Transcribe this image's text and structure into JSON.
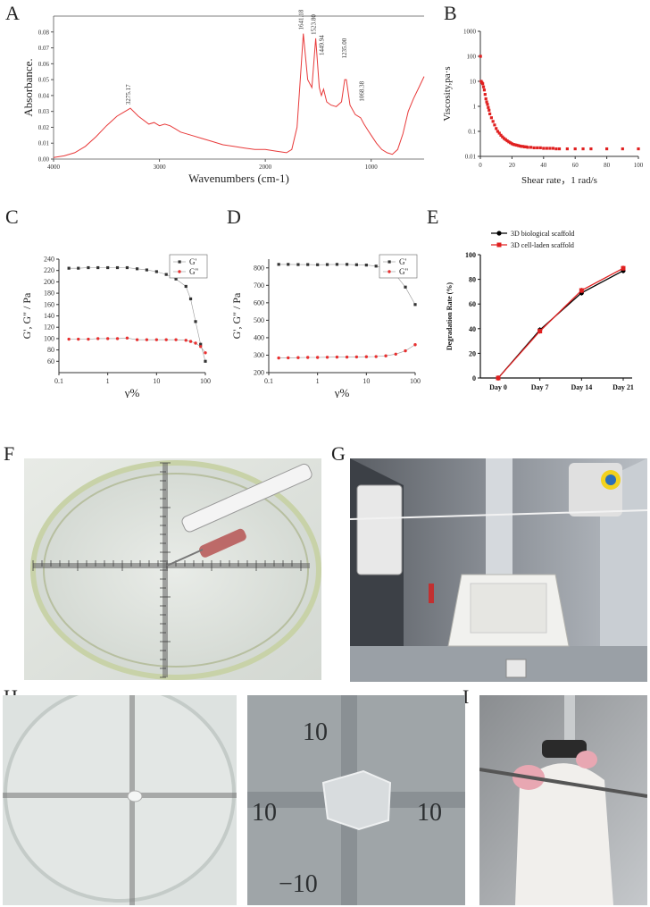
{
  "panels": {
    "A": "A",
    "B": "B",
    "C": "C",
    "D": "D",
    "E": "E",
    "F": "F",
    "G": "G",
    "H": "H",
    "I": "I"
  },
  "chart_data": [
    {
      "id": "A",
      "type": "line",
      "xlabel": "Wavenumbers (cm-1)",
      "ylabel": "Absorbance.",
      "xlim": [
        4000,
        500
      ],
      "ylim": [
        0,
        0.09
      ],
      "xticks": [
        "4000",
        "3000",
        "2000",
        "1000"
      ],
      "yticks": [
        "0.00",
        "0.01",
        "0.02",
        "0.03",
        "0.04",
        "0.05",
        "0.06",
        "0.07",
        "0.08"
      ],
      "annotations": [
        {
          "x": 3275.17,
          "y": 0.032,
          "label": "3275.17"
        },
        {
          "x": 1641.18,
          "y": 0.079,
          "label": "1641.18"
        },
        {
          "x": 1523.8,
          "y": 0.076,
          "label": "1523.80"
        },
        {
          "x": 1449.94,
          "y": 0.063,
          "label": "1449.94"
        },
        {
          "x": 1235.0,
          "y": 0.061,
          "label": "1235.00"
        },
        {
          "x": 1068.38,
          "y": 0.034,
          "label": "1068.38"
        }
      ],
      "series": [
        {
          "x": [
            4000,
            3900,
            3800,
            3700,
            3600,
            3500,
            3400,
            3300,
            3275,
            3200,
            3100,
            3050,
            3000,
            2950,
            2900,
            2850,
            2800,
            2700,
            2600,
            2500,
            2400,
            2300,
            2200,
            2100,
            2000,
            1900,
            1800,
            1750,
            1700,
            1660,
            1641,
            1600,
            1560,
            1524,
            1490,
            1470,
            1450,
            1420,
            1380,
            1330,
            1280,
            1250,
            1235,
            1200,
            1150,
            1100,
            1068,
            1030,
            1000,
            950,
            900,
            850,
            800,
            750,
            700,
            650,
            600,
            550,
            500
          ],
          "y": [
            0.001,
            0.002,
            0.004,
            0.008,
            0.014,
            0.021,
            0.027,
            0.031,
            0.032,
            0.027,
            0.022,
            0.023,
            0.021,
            0.022,
            0.021,
            0.019,
            0.017,
            0.015,
            0.013,
            0.011,
            0.009,
            0.008,
            0.007,
            0.006,
            0.006,
            0.005,
            0.004,
            0.006,
            0.02,
            0.06,
            0.079,
            0.05,
            0.045,
            0.076,
            0.045,
            0.04,
            0.044,
            0.036,
            0.034,
            0.033,
            0.036,
            0.05,
            0.05,
            0.034,
            0.028,
            0.026,
            0.022,
            0.018,
            0.015,
            0.01,
            0.006,
            0.004,
            0.003,
            0.006,
            0.016,
            0.03,
            0.038,
            0.045,
            0.052
          ]
        }
      ]
    },
    {
      "id": "B",
      "type": "scatter",
      "xlabel": "Shear rate，1 rad/s",
      "ylabel": "Viscosity,pa·s",
      "xlim": [
        0,
        100
      ],
      "ylim": [
        0.01,
        1000
      ],
      "yscale": "log",
      "xticks": [
        "0",
        "20",
        "40",
        "60",
        "80",
        "100"
      ],
      "yticks": [
        "0.01",
        "0.1",
        "1",
        "10",
        "100",
        "1000"
      ],
      "series": [
        {
          "x": [
            0.1,
            0.5,
            1,
            1.5,
            2,
            2.5,
            3,
            3.5,
            4,
            4.5,
            5,
            5.5,
            6,
            7,
            8,
            9,
            10,
            11,
            12,
            13,
            14,
            15,
            16,
            17,
            18,
            19,
            20,
            21,
            22,
            23,
            24,
            25,
            26,
            27,
            28,
            29,
            30,
            32,
            34,
            36,
            38,
            40,
            42,
            44,
            46,
            48,
            50,
            55,
            60,
            65,
            70,
            80,
            90,
            100
          ],
          "y": [
            100,
            10,
            9,
            8,
            6,
            4.5,
            3,
            2,
            1.5,
            1.2,
            0.9,
            0.7,
            0.5,
            0.35,
            0.25,
            0.18,
            0.13,
            0.1,
            0.085,
            0.07,
            0.06,
            0.052,
            0.047,
            0.042,
            0.038,
            0.035,
            0.032,
            0.03,
            0.029,
            0.028,
            0.027,
            0.026,
            0.025,
            0.025,
            0.024,
            0.024,
            0.023,
            0.023,
            0.022,
            0.022,
            0.022,
            0.021,
            0.021,
            0.021,
            0.021,
            0.02,
            0.02,
            0.02,
            0.02,
            0.02,
            0.02,
            0.02,
            0.02,
            0.02
          ]
        }
      ]
    },
    {
      "id": "C",
      "type": "line",
      "xlabel": "γ%",
      "ylabel": "G', G\" / Pa",
      "xscale": "log",
      "xlim": [
        0.1,
        100
      ],
      "ylim": [
        40,
        240
      ],
      "xticks": [
        "0.1",
        "1",
        "10",
        "100"
      ],
      "yticks": [
        "60",
        "80",
        "100",
        "120",
        "140",
        "160",
        "180",
        "200",
        "220",
        "240"
      ],
      "legend": [
        "G'",
        "G\""
      ],
      "x": [
        0.16,
        0.25,
        0.4,
        0.63,
        1,
        1.58,
        2.5,
        4,
        6.3,
        10,
        15.8,
        25,
        40,
        50,
        63,
        80,
        100
      ],
      "series": [
        {
          "name": "G'",
          "color": "#333333",
          "values": [
            224,
            224,
            225,
            225,
            225,
            225,
            225,
            223,
            221,
            218,
            213,
            205,
            192,
            170,
            130,
            90,
            60
          ]
        },
        {
          "name": "G\"",
          "color": "#e83030",
          "values": [
            99,
            99,
            99,
            100,
            100,
            100,
            101,
            98,
            98,
            98,
            98,
            98,
            97,
            95,
            92,
            86,
            75
          ]
        }
      ]
    },
    {
      "id": "D",
      "type": "line",
      "xlabel": "γ%",
      "ylabel": "G', G\" / Pa",
      "xscale": "log",
      "xlim": [
        0.1,
        100
      ],
      "ylim": [
        200,
        850
      ],
      "xticks": [
        "0.1",
        "1",
        "10",
        "100"
      ],
      "yticks": [
        "200",
        "300",
        "400",
        "500",
        "600",
        "700",
        "800"
      ],
      "legend": [
        "G'",
        "G\""
      ],
      "x": [
        0.16,
        0.25,
        0.4,
        0.63,
        1,
        1.58,
        2.5,
        4,
        6.3,
        10,
        15.8,
        25,
        40,
        63,
        100
      ],
      "series": [
        {
          "name": "G'",
          "color": "#333333",
          "values": [
            820,
            820,
            819,
            819,
            818,
            819,
            820,
            820,
            818,
            816,
            810,
            796,
            760,
            690,
            590
          ]
        },
        {
          "name": "G\"",
          "color": "#e83030",
          "values": [
            284,
            285,
            286,
            287,
            287,
            288,
            289,
            289,
            290,
            291,
            292,
            296,
            306,
            325,
            360
          ]
        }
      ]
    },
    {
      "id": "E",
      "type": "line",
      "xlabel": "",
      "ylabel": "Degradation Rate (%)",
      "ylim": [
        0,
        100
      ],
      "categories": [
        "Day 0",
        "Day 7",
        "Day 14",
        "Day 21"
      ],
      "yticks": [
        "0",
        "20",
        "40",
        "60",
        "80",
        "100"
      ],
      "legend_position": "top-left",
      "series": [
        {
          "name": "3D biological scaffold",
          "color": "#000000",
          "values": [
            0,
            39,
            69,
            87
          ]
        },
        {
          "name": "3D cell-laden scaffold",
          "color": "#e02020",
          "values": [
            0,
            38,
            71,
            89
          ]
        }
      ]
    }
  ]
}
